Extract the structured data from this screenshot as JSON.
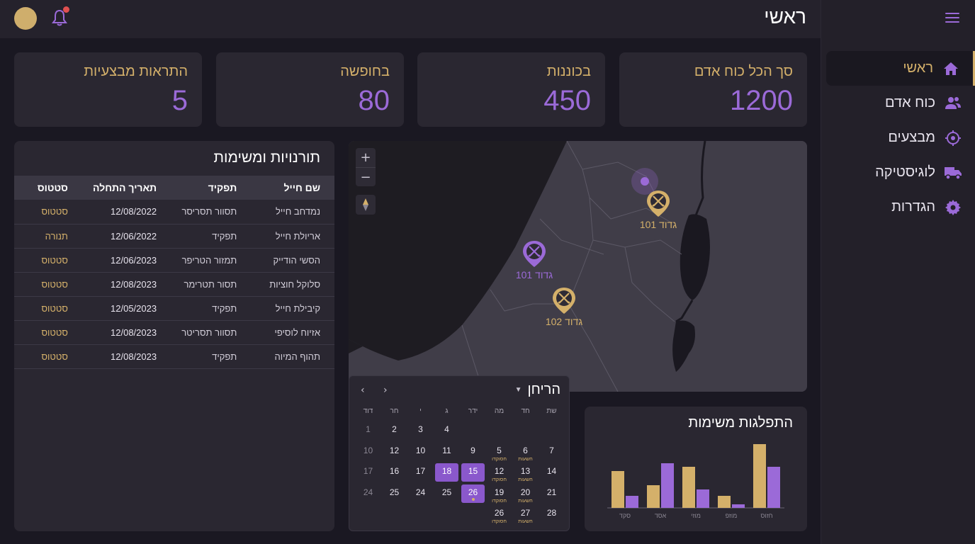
{
  "topbar": {
    "title": "ראשי"
  },
  "sidebar": {
    "items": [
      {
        "label": "ראשי",
        "icon": "home-icon",
        "active": true
      },
      {
        "label": "כוח אדם",
        "icon": "users-icon",
        "active": false
      },
      {
        "label": "מבצעים",
        "icon": "target-icon",
        "active": false
      },
      {
        "label": "לוגיסטיקה",
        "icon": "truck-icon",
        "active": false
      },
      {
        "label": "הגדרות",
        "icon": "gear-icon",
        "active": false
      }
    ]
  },
  "stats": [
    {
      "label": "סך הכל כוח אדם",
      "value": "1200"
    },
    {
      "label": "בכוננות",
      "value": "450"
    },
    {
      "label": "בחופשה",
      "value": "80"
    },
    {
      "label": "התראות מבצעיות",
      "value": "5"
    }
  ],
  "table": {
    "title": "תורנויות ומשימות",
    "headers": [
      "שם חייל",
      "תפקיד",
      "תאריך התחלה",
      "סטטוס"
    ],
    "rows": [
      [
        "נמדחב חייל",
        "תסוור תסריסר",
        "12/08/2022",
        "סטטוס"
      ],
      [
        "אריולת חייל",
        "תפקיד",
        "12/06/2022",
        "תנורה"
      ],
      [
        "הסשי הודייק",
        "תמזור הטריפר",
        "12/06/2023",
        "סטטוס"
      ],
      [
        "סלוקל חוציות",
        "תסור תטרימר",
        "12/08/2023",
        "סטטוס"
      ],
      [
        "קיבילת חייל",
        "תפקיד",
        "12/05/2023",
        "סטטוס"
      ],
      [
        "אזיוח לוסיפי",
        "תסוור תסריטר",
        "12/08/2023",
        "סטטוס"
      ],
      [
        "תהוף המיוה",
        "תפקיד",
        "12/08/2023",
        "סטטוס"
      ]
    ]
  },
  "map": {
    "zoom_in": "+",
    "zoom_out": "−",
    "markers": [
      {
        "label": "גדוד 101",
        "color": "#d4b06a"
      },
      {
        "label": "גדוד 101",
        "color": "#9b6ad8"
      },
      {
        "label": "גדוד 102",
        "color": "#d4b06a"
      }
    ]
  },
  "calendar": {
    "title": "הריחן",
    "prev": "‹",
    "next": "›",
    "day_headers": [
      "שת",
      "חד",
      "מה",
      "ידר",
      "ג",
      "י",
      "חר",
      "דוד"
    ],
    "rows": [
      [
        {
          "n": ""
        },
        {
          "n": ""
        },
        {
          "n": ""
        },
        {
          "n": ""
        },
        {
          "n": "4"
        },
        {
          "n": "3"
        },
        {
          "n": "2"
        },
        {
          "n": "1",
          "dim": true
        }
      ],
      [
        {
          "n": "7"
        },
        {
          "n": "6",
          "sub": "חשעות"
        },
        {
          "n": "5",
          "sub": "חסוקדו"
        },
        {
          "n": "9"
        },
        {
          "n": "11"
        },
        {
          "n": "10"
        },
        {
          "n": "12"
        },
        {
          "n": "10",
          "dim": true
        }
      ],
      [
        {
          "n": "14"
        },
        {
          "n": "13",
          "sub": "חשעות"
        },
        {
          "n": "12",
          "sub": "חסוקדו"
        },
        {
          "n": "15",
          "sel": true
        },
        {
          "n": "18",
          "sel": true
        },
        {
          "n": "17"
        },
        {
          "n": "16"
        },
        {
          "n": "17",
          "dim": true
        }
      ],
      [
        {
          "n": "21"
        },
        {
          "n": "20",
          "sub": "חשעות"
        },
        {
          "n": "19",
          "sub": "חסוקדו"
        },
        {
          "n": "26",
          "sel": true,
          "dot": true
        },
        {
          "n": "25"
        },
        {
          "n": "24"
        },
        {
          "n": "25"
        },
        {
          "n": "24",
          "dim": true
        }
      ],
      [
        {
          "n": "28"
        },
        {
          "n": "27",
          "sub": "חשעות"
        },
        {
          "n": "26",
          "sub": "חסוקדו"
        },
        {
          "n": ""
        },
        {
          "n": ""
        },
        {
          "n": ""
        },
        {
          "n": ""
        },
        {
          "n": ""
        }
      ]
    ]
  },
  "chart_data": {
    "type": "bar",
    "title": "התפלגות משימות",
    "categories": [
      "סקד",
      "אסד",
      "מוזי",
      "מוזפ",
      "חזוס"
    ],
    "series": [
      {
        "values": [
          52,
          32,
          58,
          17,
          90
        ],
        "color": "#d4b06a"
      },
      {
        "values": [
          17,
          63,
          26,
          5,
          58
        ],
        "color": "#9b6ad8"
      }
    ],
    "ylim": [
      0,
      100
    ],
    "grid": false
  }
}
